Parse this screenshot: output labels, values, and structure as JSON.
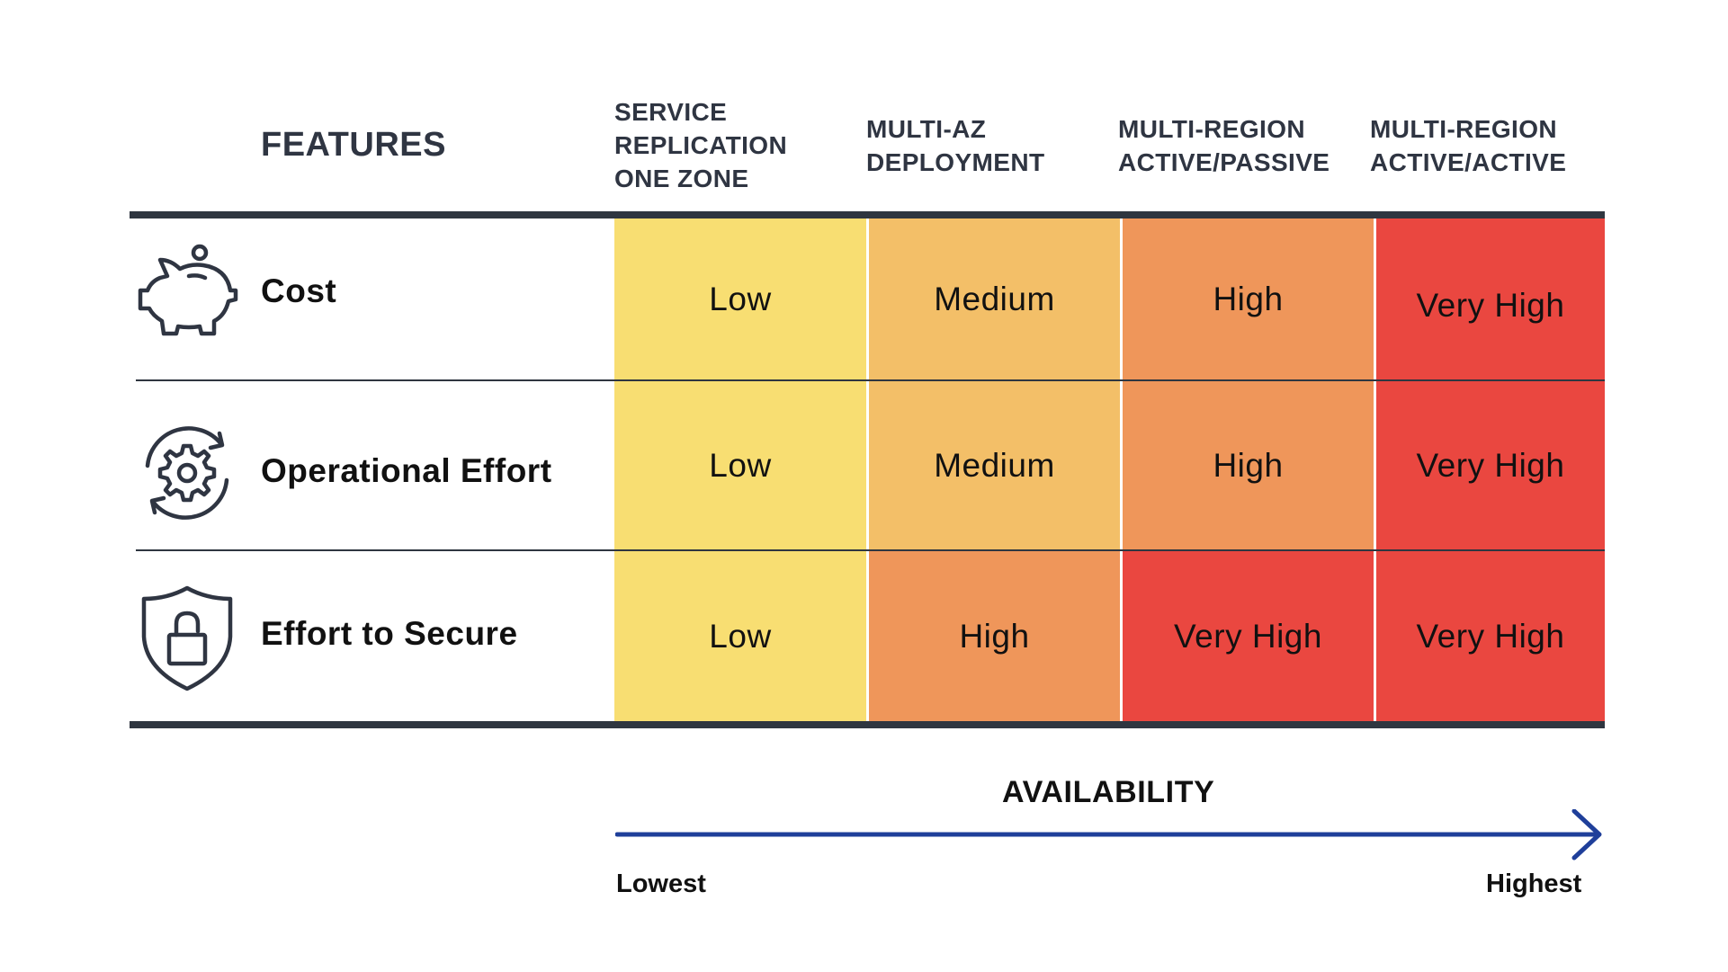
{
  "features_title": "FEATURES",
  "columns": [
    {
      "lines": [
        "SERVICE",
        "REPLICATION",
        "ONE ZONE"
      ]
    },
    {
      "lines": [
        "MULTI-AZ",
        "DEPLOYMENT"
      ]
    },
    {
      "lines": [
        "MULTI-REGION",
        "ACTIVE/PASSIVE"
      ]
    },
    {
      "lines": [
        "MULTI-REGION",
        "ACTIVE/ACTIVE"
      ]
    }
  ],
  "rows": [
    {
      "label": "Cost",
      "icon": "piggy-bank-icon",
      "values": [
        "Low",
        "Medium",
        "High",
        "Very High"
      ]
    },
    {
      "label": "Operational Effort",
      "icon": "gear-cycle-icon",
      "values": [
        "Low",
        "Medium",
        "High",
        "Very High"
      ]
    },
    {
      "label": "Effort to Secure",
      "icon": "shield-lock-icon",
      "values": [
        "Low",
        "High",
        "Very High",
        "Very High"
      ]
    }
  ],
  "level_colors": {
    "Low": "#f8de72",
    "Medium": "#f3bf68",
    "High": "#ef965a",
    "Very High": "#ea4740"
  },
  "availability": {
    "label": "AVAILABILITY",
    "low_label": "Lowest",
    "high_label": "Highest",
    "arrow_color": "#1f3f9a"
  }
}
